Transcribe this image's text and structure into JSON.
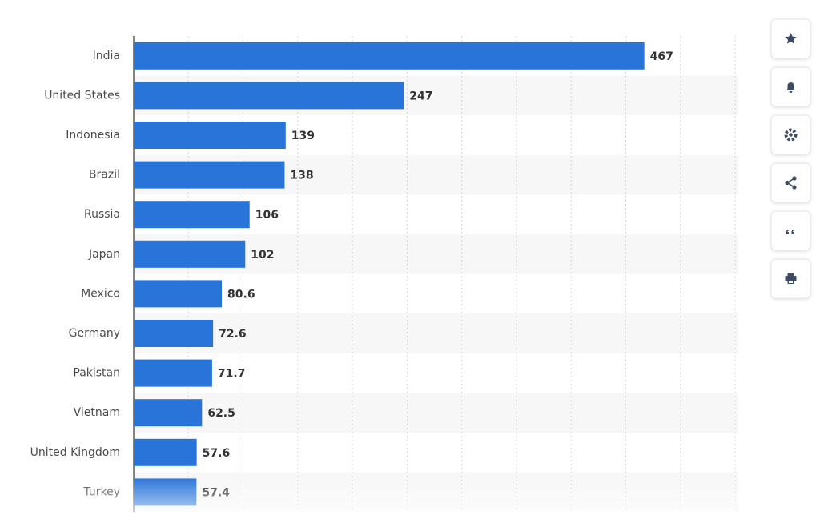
{
  "chart_data": {
    "type": "bar",
    "orientation": "horizontal",
    "categories": [
      "India",
      "United States",
      "Indonesia",
      "Brazil",
      "Russia",
      "Japan",
      "Mexico",
      "Germany",
      "Pakistan",
      "Vietnam",
      "United Kingdom",
      "Turkey"
    ],
    "values": [
      467,
      247,
      139,
      138,
      106,
      102,
      80.6,
      72.6,
      71.7,
      62.5,
      57.6,
      57.4
    ],
    "color": "#2874d9",
    "xlim": [
      0,
      550
    ],
    "xticks": [
      50,
      100,
      150,
      200,
      250,
      300,
      350,
      400,
      450,
      500,
      550
    ],
    "grid": true
  }
}
